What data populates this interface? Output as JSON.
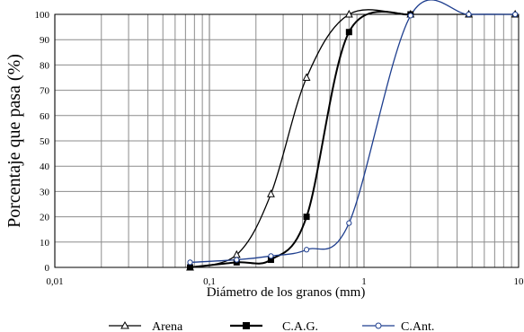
{
  "chart_data": {
    "type": "line",
    "title": "",
    "xlabel": "Diámetro de los granos (mm)",
    "ylabel": "Porcentaje que pasa (%)",
    "xscale": "log",
    "xlim": [
      0.01,
      10
    ],
    "ylim": [
      0,
      100
    ],
    "x_ticks": [
      0.01,
      0.1,
      1,
      10
    ],
    "x_tick_labels": [
      "0,01",
      "0,1",
      "1",
      "10"
    ],
    "y_ticks": [
      0,
      10,
      20,
      30,
      40,
      50,
      60,
      70,
      80,
      90,
      100
    ],
    "y_tick_labels": [
      "0",
      "10",
      "20",
      "30",
      "40",
      "50",
      "60",
      "70",
      "80",
      "90",
      "100"
    ],
    "grid": true,
    "legend_position": "bottom",
    "series": [
      {
        "name": "Arena",
        "marker": "triangle-open",
        "color": "#000000",
        "x": [
          0.075,
          0.15,
          0.25,
          0.425,
          0.8,
          2,
          4.76,
          9.5
        ],
        "values": [
          0,
          5,
          29,
          75,
          100,
          100,
          100,
          100
        ]
      },
      {
        "name": "C.A.G.",
        "marker": "square-filled",
        "color": "#000000",
        "x": [
          0.075,
          0.15,
          0.25,
          0.425,
          0.8,
          2
        ],
        "values": [
          0,
          2,
          3,
          20,
          93,
          100
        ]
      },
      {
        "name": "C.Ant.",
        "marker": "circle-open",
        "color": "#1f3f8f",
        "x": [
          0.075,
          0.15,
          0.25,
          0.425,
          0.8,
          2,
          4.76,
          9.5
        ],
        "values": [
          2,
          3,
          4.5,
          7,
          17.5,
          99.5,
          100,
          100
        ]
      }
    ]
  }
}
